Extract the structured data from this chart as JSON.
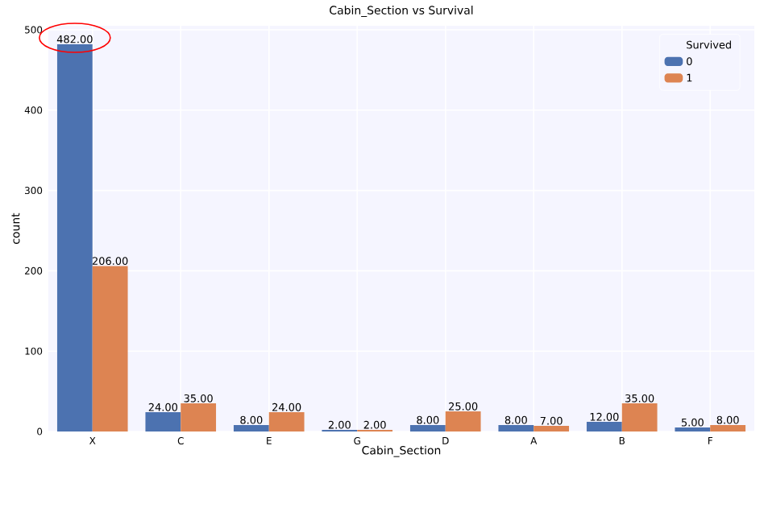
{
  "chart_data": {
    "type": "bar",
    "title": "Cabin_Section vs Survival",
    "xlabel": "Cabin_Section",
    "ylabel": "count",
    "legend_title": "Survived",
    "categories": [
      "X",
      "C",
      "E",
      "G",
      "D",
      "A",
      "B",
      "F"
    ],
    "series": [
      {
        "name": "0",
        "color": "#4c72b0",
        "values": [
          482,
          24,
          8,
          2,
          8,
          8,
          12,
          5
        ],
        "value_labels": [
          "482.00",
          "24.00",
          "8.00",
          "2.00",
          "8.00",
          "8.00",
          "12.00",
          "5.00"
        ]
      },
      {
        "name": "1",
        "color": "#dd8452",
        "values": [
          206,
          35,
          24,
          2,
          25,
          7,
          35,
          8
        ],
        "value_labels": [
          "206.00",
          "35.00",
          "24.00",
          "2.00",
          "25.00",
          "7.00",
          "35.00",
          "8.00"
        ]
      }
    ],
    "ylim": [
      0,
      505
    ],
    "yticks": [
      0,
      100,
      200,
      300,
      400,
      500
    ],
    "grid": true,
    "legend": "top right"
  }
}
